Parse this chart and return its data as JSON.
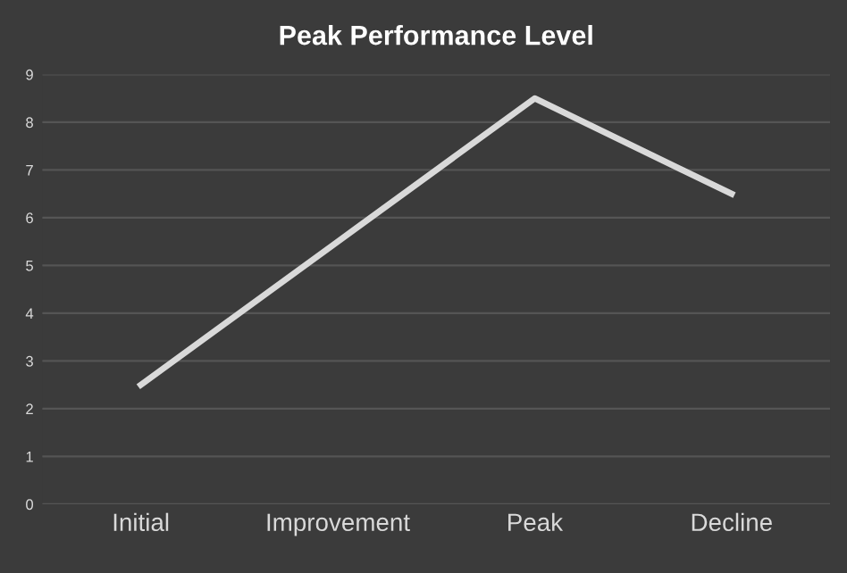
{
  "chart_data": {
    "type": "line",
    "title": "Peak Performance Level",
    "categories": [
      "Initial",
      "Improvement",
      "Peak",
      "Decline"
    ],
    "series": [
      {
        "color": "#d9d9d9",
        "values": [
          2.5,
          5.5,
          8.5,
          6.5
        ]
      }
    ],
    "ylim": [
      0,
      9
    ],
    "yticks": [
      0,
      1,
      2,
      3,
      4,
      5,
      6,
      7,
      8,
      9
    ],
    "grid": "y",
    "marker": "none",
    "line_style": "solid"
  }
}
